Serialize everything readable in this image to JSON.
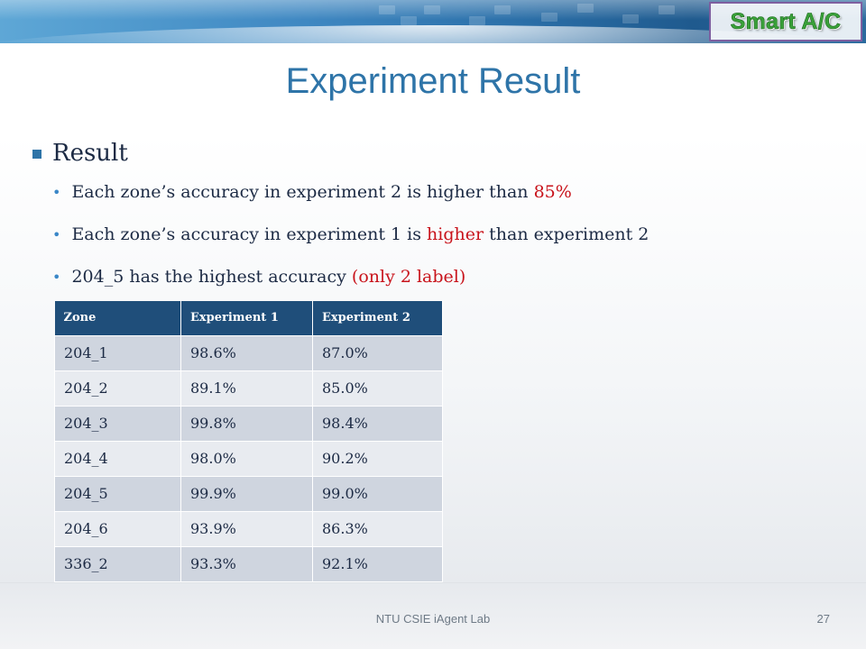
{
  "brand": "Smart A/C",
  "title": "Experiment Result",
  "bullet_heading": "Result",
  "points": [
    {
      "pre": "Each zone’s accuracy in experiment 2 is higher than ",
      "hl": "85%",
      "post": ""
    },
    {
      "pre": "Each zone’s accuracy in experiment 1 is ",
      "hl": "higher",
      "post": " than experiment 2"
    },
    {
      "pre": "204_5 has the highest  accuracy ",
      "hl": "(only 2 label)",
      "post": ""
    }
  ],
  "table": {
    "headers": [
      "Zone",
      "Experiment 1",
      "Experiment 2"
    ],
    "rows": [
      [
        "204_1",
        "98.6%",
        "87.0%"
      ],
      [
        "204_2",
        "89.1%",
        "85.0%"
      ],
      [
        "204_3",
        "99.8%",
        "98.4%"
      ],
      [
        "204_4",
        "98.0%",
        "90.2%"
      ],
      [
        "204_5",
        "99.9%",
        "99.0%"
      ],
      [
        "204_6",
        "93.9%",
        "86.3%"
      ],
      [
        "336_2",
        "93.3%",
        "92.1%"
      ]
    ]
  },
  "footer": "NTU CSIE iAgent Lab",
  "page_number": "27",
  "colors": {
    "title": "#2e74a8",
    "highlight": "#c8131b",
    "table_header": "#1f4e7a",
    "brand": "#3aa13a"
  }
}
